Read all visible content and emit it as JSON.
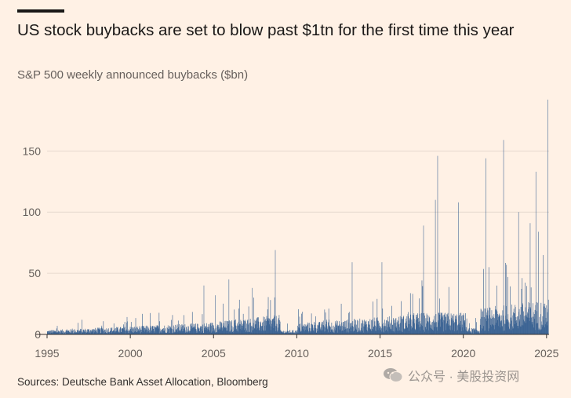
{
  "title": "US stock buybacks are set to blow past $1tn for the first time this year",
  "subtitle": "S&P 500 weekly announced buybacks ($bn)",
  "source": "Sources: Deutsche Bank Asset Allocation, Bloomberg",
  "watermark": "公众号 · 美股投资网",
  "colors": {
    "background": "#fff1e5",
    "bars": "#2f5a8e",
    "gridline": "#e6d9ce",
    "axis": "#33302e"
  },
  "chart_data": {
    "type": "bar",
    "title": "US stock buybacks are set to blow past $1tn for the first time this year",
    "subtitle": "S&P 500 weekly announced buybacks ($bn)",
    "xlabel": "",
    "ylabel": "",
    "xlim": [
      1995,
      2025.15
    ],
    "ylim": [
      0,
      190
    ],
    "y_ticks": [
      0,
      50,
      100,
      150
    ],
    "x_ticks": [
      1995,
      2000,
      2005,
      2010,
      2015,
      2020,
      2025
    ],
    "grid": "horizontal",
    "frequency": "weekly",
    "series": [
      {
        "values_note": "approximate weekly values read from bars; notable peaks listed",
        "peaks": [
          {
            "x": 2004.4,
            "y": 40
          },
          {
            "x": 2005.1,
            "y": 32
          },
          {
            "x": 2005.9,
            "y": 45
          },
          {
            "x": 2007.3,
            "y": 38
          },
          {
            "x": 2008.7,
            "y": 69
          },
          {
            "x": 2013.3,
            "y": 59
          },
          {
            "x": 2015.1,
            "y": 59
          },
          {
            "x": 2017.6,
            "y": 89
          },
          {
            "x": 2018.3,
            "y": 110
          },
          {
            "x": 2018.45,
            "y": 146
          },
          {
            "x": 2019.7,
            "y": 108
          },
          {
            "x": 2021.35,
            "y": 144
          },
          {
            "x": 2022.4,
            "y": 159
          },
          {
            "x": 2023.3,
            "y": 100
          },
          {
            "x": 2024.0,
            "y": 91
          },
          {
            "x": 2024.35,
            "y": 133
          },
          {
            "x": 2024.5,
            "y": 84
          },
          {
            "x": 2025.05,
            "y": 192
          }
        ]
      }
    ]
  }
}
